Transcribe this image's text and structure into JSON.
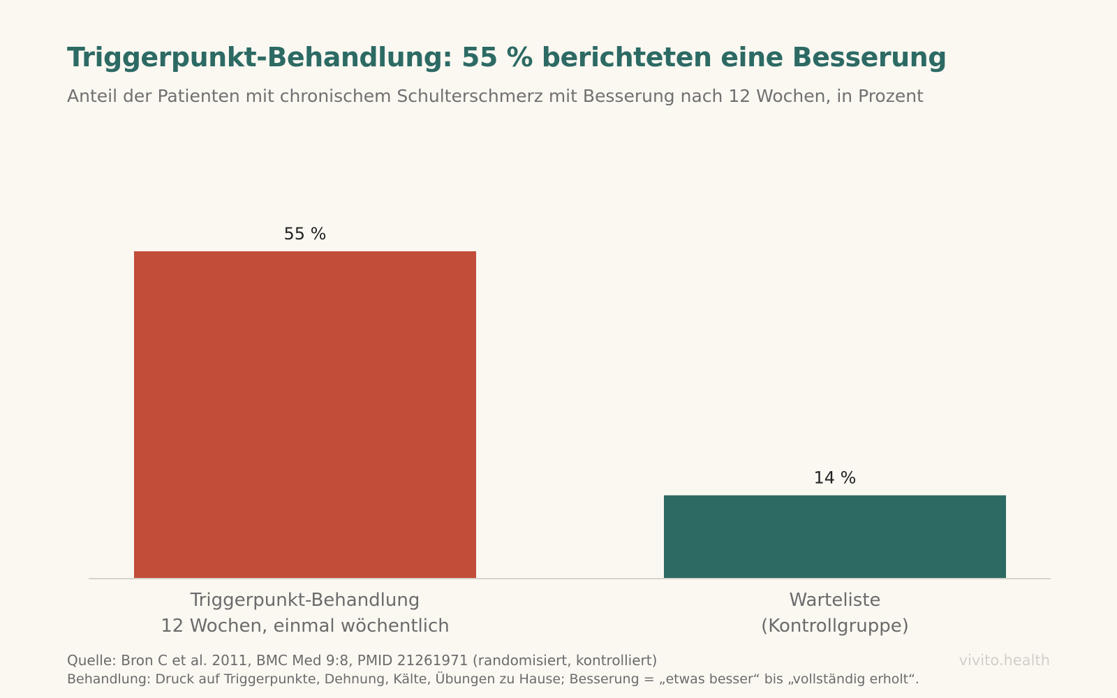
{
  "chart_data": {
    "type": "bar",
    "title": "Triggerpunkt-Behandlung: 55 % berichteten eine Besserung",
    "subtitle": "Anteil der Patienten mit chronischem Schulterschmerz mit Besserung nach 12 Wochen, in Prozent",
    "categories": [
      [
        "Triggerpunkt-Behandlung",
        "12 Wochen, einmal wöchentlich"
      ],
      [
        "Warteliste",
        "(Kontrollgruppe)"
      ]
    ],
    "values": [
      55,
      14
    ],
    "value_labels": [
      "55 %",
      "14 %"
    ],
    "colors": [
      "#c24e3a",
      "#2d6a64"
    ],
    "ylim": [
      0,
      60
    ],
    "grid": false,
    "legend": "none"
  },
  "footer": {
    "source": "Quelle: Bron C et al. 2011, BMC Med 9:8, PMID 21261971 (randomisiert, kontrolliert)",
    "note": "Behandlung: Druck auf Triggerpunkte, Dehnung, Kälte, Übungen zu Hause; Besserung = „etwas besser“ bis „vollständig erholt“.",
    "brand": "vivito.health"
  },
  "colors": {
    "background": "#fbf8f2",
    "title": "#2d6a64",
    "axis": "#d6d3cd"
  }
}
